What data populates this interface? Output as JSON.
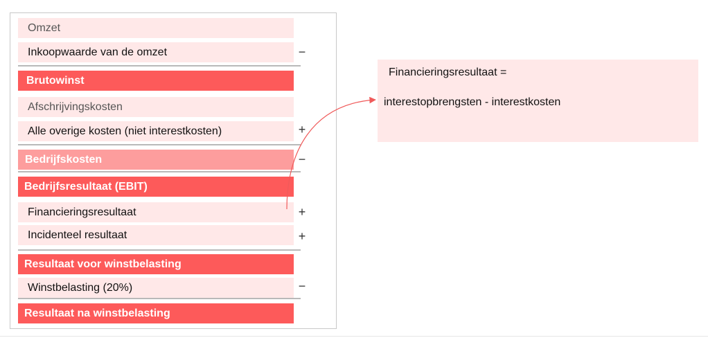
{
  "statement": {
    "rows": [
      {
        "label": "Omzet",
        "operator": ""
      },
      {
        "label": "Inkoopwaarde van de omzet",
        "operator": "−"
      },
      {
        "label": "Brutowinst",
        "operator": ""
      },
      {
        "label": "Afschrijvingskosten",
        "operator": ""
      },
      {
        "label": "Alle overige kosten (niet interestkosten)",
        "operator": "+"
      },
      {
        "label": "Bedrijfskosten",
        "operator": "−"
      },
      {
        "label": "Bedrijfsresultaat (EBIT)",
        "operator": ""
      },
      {
        "label": "Financieringsresultaat",
        "operator": "+"
      },
      {
        "label": "Incidenteel resultaat",
        "operator": "+"
      },
      {
        "label": "Resultaat voor winstbelasting",
        "operator": ""
      },
      {
        "label": "Winstbelasting (20%)",
        "operator": "−"
      },
      {
        "label": "Resultaat na winstbelasting",
        "operator": ""
      }
    ]
  },
  "note": {
    "line1": "Financieringsresultaat =",
    "line2": "interestopbrengsten - interestkosten"
  },
  "colors": {
    "light_row": "#ffe8e8",
    "total_row": "#fd5a5a",
    "subtotal_row": "#fd9d9d",
    "arrow": "#f05a5a"
  }
}
